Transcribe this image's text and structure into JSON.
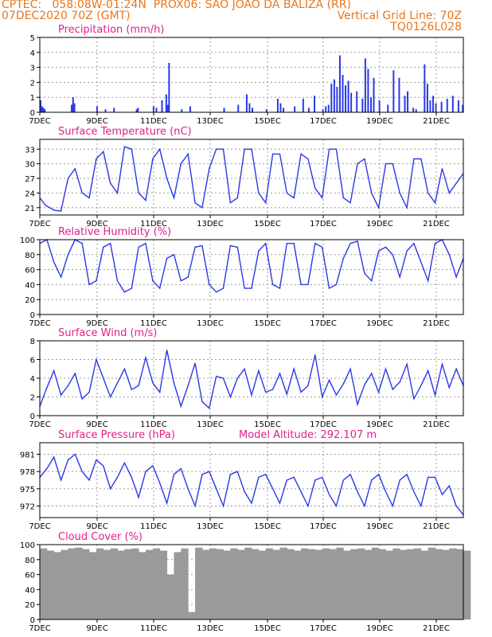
{
  "header": {
    "line1_left": "CPTEC:   058:08W-01:24N  PROX06: SAO JOAO DA BALIZA (RR)",
    "line2_left": "07DEC2020 70Z (GMT)",
    "line2_right": "Vertical Grid Line: 70Z",
    "line3_right": "TQ0126L028"
  },
  "x_ticks": [
    "7DEC",
    "9DEC",
    "11DEC",
    "13DEC",
    "15DEC",
    "17DEC",
    "19DEC",
    "21DEC"
  ],
  "colors": {
    "header": "#e8761c",
    "panel_title": "#e0208c",
    "series": "#2a39e6",
    "bars": "#2a39e6",
    "cloud": "#9a9a9a"
  },
  "chart_data": [
    {
      "type": "bar",
      "title": "Precipitation (mm/h)",
      "ylim": [
        0,
        5
      ],
      "yticks": [
        0,
        1,
        2,
        3,
        4,
        5
      ],
      "x_start_day": 7,
      "x_end_day": 22,
      "x": [
        7.0,
        7.05,
        7.1,
        7.15,
        8.1,
        8.15,
        8.2,
        9.0,
        9.3,
        9.6,
        10.4,
        10.45,
        11.0,
        11.1,
        11.3,
        11.45,
        11.5,
        11.55,
        12.0,
        12.3,
        13.5,
        14.0,
        14.3,
        14.4,
        14.5,
        15.0,
        15.4,
        15.5,
        15.6,
        16.0,
        16.3,
        16.5,
        16.7,
        17.0,
        17.1,
        17.2,
        17.3,
        17.4,
        17.5,
        17.6,
        17.7,
        17.8,
        17.9,
        18.0,
        18.2,
        18.4,
        18.5,
        18.6,
        18.7,
        18.8,
        19.0,
        19.3,
        19.5,
        19.7,
        19.9,
        20.0,
        20.2,
        20.3,
        20.6,
        20.7,
        20.8,
        20.9,
        21.0,
        21.2,
        21.4,
        21.6,
        21.8,
        21.95
      ],
      "values": [
        0.8,
        0.4,
        0.3,
        0.2,
        0.5,
        1.0,
        0.6,
        0.4,
        0.2,
        0.3,
        0.2,
        0.3,
        0.4,
        0.3,
        0.8,
        1.2,
        0.5,
        3.3,
        0.2,
        0.4,
        0.3,
        0.5,
        1.2,
        0.6,
        0.3,
        0.2,
        0.9,
        0.6,
        0.3,
        0.4,
        0.9,
        0.3,
        1.1,
        0.2,
        0.4,
        0.5,
        1.9,
        2.2,
        1.7,
        3.8,
        2.5,
        1.8,
        2.1,
        1.3,
        1.4,
        0.9,
        3.6,
        2.9,
        1.0,
        2.3,
        0.8,
        0.5,
        2.8,
        2.3,
        1.1,
        1.4,
        0.3,
        0.2,
        3.2,
        1.9,
        0.8,
        1.1,
        0.6,
        0.7,
        0.9,
        1.1,
        0.8,
        0.5
      ]
    },
    {
      "type": "line",
      "title": "Surface Temperature (nC)",
      "ylim": [
        19.5,
        35
      ],
      "yticks": [
        21,
        24,
        27,
        30,
        33
      ],
      "x_start_day": 7,
      "x_end_day": 22,
      "x": [
        7.0,
        7.2,
        7.5,
        7.75,
        8.0,
        8.25,
        8.5,
        8.75,
        9.0,
        9.25,
        9.5,
        9.75,
        10.0,
        10.25,
        10.5,
        10.75,
        11.0,
        11.25,
        11.5,
        11.75,
        12.0,
        12.25,
        12.5,
        12.75,
        13.0,
        13.25,
        13.5,
        13.75,
        14.0,
        14.25,
        14.5,
        14.75,
        15.0,
        15.25,
        15.5,
        15.75,
        16.0,
        16.25,
        16.5,
        16.75,
        17.0,
        17.25,
        17.5,
        17.75,
        18.0,
        18.25,
        18.5,
        18.75,
        19.0,
        19.25,
        19.5,
        19.75,
        20.0,
        20.25,
        20.5,
        20.75,
        21.0,
        21.25,
        21.5,
        21.75,
        22.0
      ],
      "values": [
        23,
        21.5,
        20.5,
        20.3,
        27,
        29,
        24,
        23,
        31,
        32.5,
        26,
        24,
        33.5,
        33,
        24,
        22.5,
        31,
        33,
        27,
        23,
        30,
        32,
        22,
        21,
        29,
        33,
        33,
        22,
        23,
        33,
        33,
        24,
        22,
        32,
        32,
        24,
        23,
        32,
        31,
        25,
        23,
        33,
        33,
        23,
        22,
        30,
        31,
        24,
        21,
        30,
        30,
        24,
        21,
        31,
        31,
        24,
        22,
        29,
        24,
        26,
        28
      ]
    },
    {
      "type": "line",
      "title": "Relative Humidity (%)",
      "ylim": [
        0,
        100
      ],
      "yticks": [
        0,
        20,
        40,
        60,
        80,
        100
      ],
      "x_start_day": 7,
      "x_end_day": 22,
      "x": [
        7.0,
        7.25,
        7.5,
        7.75,
        8.0,
        8.25,
        8.5,
        8.75,
        9.0,
        9.25,
        9.5,
        9.75,
        10.0,
        10.25,
        10.5,
        10.75,
        11.0,
        11.25,
        11.5,
        11.75,
        12.0,
        12.25,
        12.5,
        12.75,
        13.0,
        13.25,
        13.5,
        13.75,
        14.0,
        14.25,
        14.5,
        14.75,
        15.0,
        15.25,
        15.5,
        15.75,
        16.0,
        16.25,
        16.5,
        16.75,
        17.0,
        17.25,
        17.5,
        17.75,
        18.0,
        18.25,
        18.5,
        18.75,
        19.0,
        19.25,
        19.5,
        19.75,
        20.0,
        20.25,
        20.5,
        20.75,
        21.0,
        21.25,
        21.5,
        21.75,
        22.0
      ],
      "values": [
        95,
        100,
        70,
        50,
        80,
        100,
        95,
        40,
        45,
        90,
        95,
        45,
        30,
        35,
        90,
        95,
        45,
        35,
        75,
        80,
        45,
        50,
        90,
        92,
        40,
        30,
        35,
        92,
        90,
        35,
        35,
        85,
        95,
        40,
        35,
        95,
        95,
        40,
        40,
        95,
        90,
        35,
        40,
        75,
        95,
        98,
        55,
        45,
        85,
        90,
        80,
        50,
        85,
        95,
        70,
        45,
        95,
        100,
        80,
        50,
        75
      ]
    },
    {
      "type": "line",
      "title": "Surface Wind (m/s)",
      "ylim": [
        0,
        8
      ],
      "yticks": [
        0,
        2,
        4,
        6,
        8
      ],
      "x_start_day": 7,
      "x_end_day": 22,
      "x": [
        7.0,
        7.25,
        7.5,
        7.75,
        8.0,
        8.25,
        8.5,
        8.75,
        9.0,
        9.25,
        9.5,
        9.75,
        10.0,
        10.25,
        10.5,
        10.75,
        11.0,
        11.25,
        11.5,
        11.75,
        12.0,
        12.25,
        12.5,
        12.75,
        13.0,
        13.25,
        13.5,
        13.75,
        14.0,
        14.25,
        14.5,
        14.75,
        15.0,
        15.25,
        15.5,
        15.75,
        16.0,
        16.25,
        16.5,
        16.75,
        17.0,
        17.25,
        17.5,
        17.75,
        18.0,
        18.25,
        18.5,
        18.75,
        19.0,
        19.25,
        19.5,
        19.75,
        20.0,
        20.25,
        20.5,
        20.75,
        21.0,
        21.25,
        21.5,
        21.75,
        22.0
      ],
      "values": [
        1.0,
        3.0,
        4.8,
        2.2,
        3.2,
        4.5,
        1.8,
        2.5,
        6.0,
        4.0,
        2.0,
        3.5,
        5.0,
        2.8,
        3.2,
        6.2,
        3.5,
        2.5,
        7.0,
        3.5,
        1.0,
        3.2,
        5.6,
        1.5,
        0.8,
        4.2,
        4.0,
        2.0,
        4.0,
        5.0,
        2.2,
        4.8,
        2.5,
        2.8,
        4.5,
        2.3,
        5.0,
        2.5,
        3.2,
        6.5,
        2.0,
        3.8,
        2.2,
        3.4,
        5.0,
        1.2,
        3.3,
        4.5,
        2.5,
        5.0,
        2.8,
        3.6,
        5.5,
        1.8,
        3.2,
        4.8,
        2.2,
        5.5,
        3.0,
        5.0,
        3.2
      ]
    },
    {
      "type": "line",
      "title": "Surface Pressure (hPa)",
      "annotation": "Model Altitude: 292.107 m",
      "ylim": [
        970,
        983
      ],
      "yticks": [
        972,
        975,
        978,
        981
      ],
      "x_start_day": 7,
      "x_end_day": 22,
      "x": [
        7.0,
        7.25,
        7.5,
        7.75,
        8.0,
        8.25,
        8.5,
        8.75,
        9.0,
        9.25,
        9.5,
        9.75,
        10.0,
        10.25,
        10.5,
        10.75,
        11.0,
        11.25,
        11.5,
        11.75,
        12.0,
        12.25,
        12.5,
        12.75,
        13.0,
        13.25,
        13.5,
        13.75,
        14.0,
        14.25,
        14.5,
        14.75,
        15.0,
        15.25,
        15.5,
        15.75,
        16.0,
        16.25,
        16.5,
        16.75,
        17.0,
        17.25,
        17.5,
        17.75,
        18.0,
        18.25,
        18.5,
        18.75,
        19.0,
        19.25,
        19.5,
        19.75,
        20.0,
        20.25,
        20.5,
        20.75,
        21.0,
        21.25,
        21.5,
        21.75,
        22.0
      ],
      "values": [
        977,
        978.5,
        980.5,
        976.5,
        980,
        981,
        978,
        976.5,
        980,
        979,
        975,
        977,
        979.5,
        977,
        973.5,
        978,
        979,
        976,
        972.5,
        977.5,
        978.5,
        975,
        972,
        977.5,
        978,
        975,
        972,
        977.5,
        978,
        974.5,
        972.5,
        977,
        977.5,
        975,
        972.5,
        976.5,
        977,
        974.5,
        972,
        976.5,
        977,
        974,
        972,
        976.5,
        977.5,
        974.5,
        972,
        976.5,
        977.5,
        974.5,
        972,
        976.5,
        977.5,
        974.5,
        972,
        977,
        977,
        974,
        975.5,
        972,
        970.5
      ]
    },
    {
      "type": "bar",
      "title": "Cloud Cover (%)",
      "ylim": [
        0,
        100
      ],
      "yticks": [
        0,
        20,
        40,
        60,
        80,
        100
      ],
      "x_start_day": 7,
      "x_end_day": 22,
      "x": [
        7.0,
        7.25,
        7.5,
        7.75,
        8.0,
        8.25,
        8.5,
        8.75,
        9.0,
        9.25,
        9.5,
        9.75,
        10.0,
        10.25,
        10.5,
        10.75,
        11.0,
        11.25,
        11.5,
        11.75,
        12.0,
        12.25,
        12.5,
        12.75,
        13.0,
        13.25,
        13.5,
        13.75,
        14.0,
        14.25,
        14.5,
        14.75,
        15.0,
        15.25,
        15.5,
        15.75,
        16.0,
        16.25,
        16.5,
        16.75,
        17.0,
        17.25,
        17.5,
        17.75,
        18.0,
        18.25,
        18.5,
        18.75,
        19.0,
        19.25,
        19.5,
        19.75,
        20.0,
        20.25,
        20.5,
        20.75,
        21.0,
        21.25,
        21.5,
        21.75,
        22.0
      ],
      "values": [
        95,
        92,
        90,
        93,
        95,
        96,
        94,
        90,
        95,
        93,
        95,
        92,
        94,
        95,
        90,
        93,
        95,
        92,
        60,
        90,
        95,
        10,
        96,
        93,
        95,
        94,
        92,
        95,
        93,
        96,
        94,
        92,
        95,
        93,
        96,
        94,
        92,
        95,
        94,
        93,
        95,
        94,
        96,
        92,
        94,
        95,
        93,
        96,
        94,
        92,
        95,
        93,
        94,
        95,
        92,
        96,
        94,
        93,
        95,
        94,
        92
      ]
    }
  ]
}
